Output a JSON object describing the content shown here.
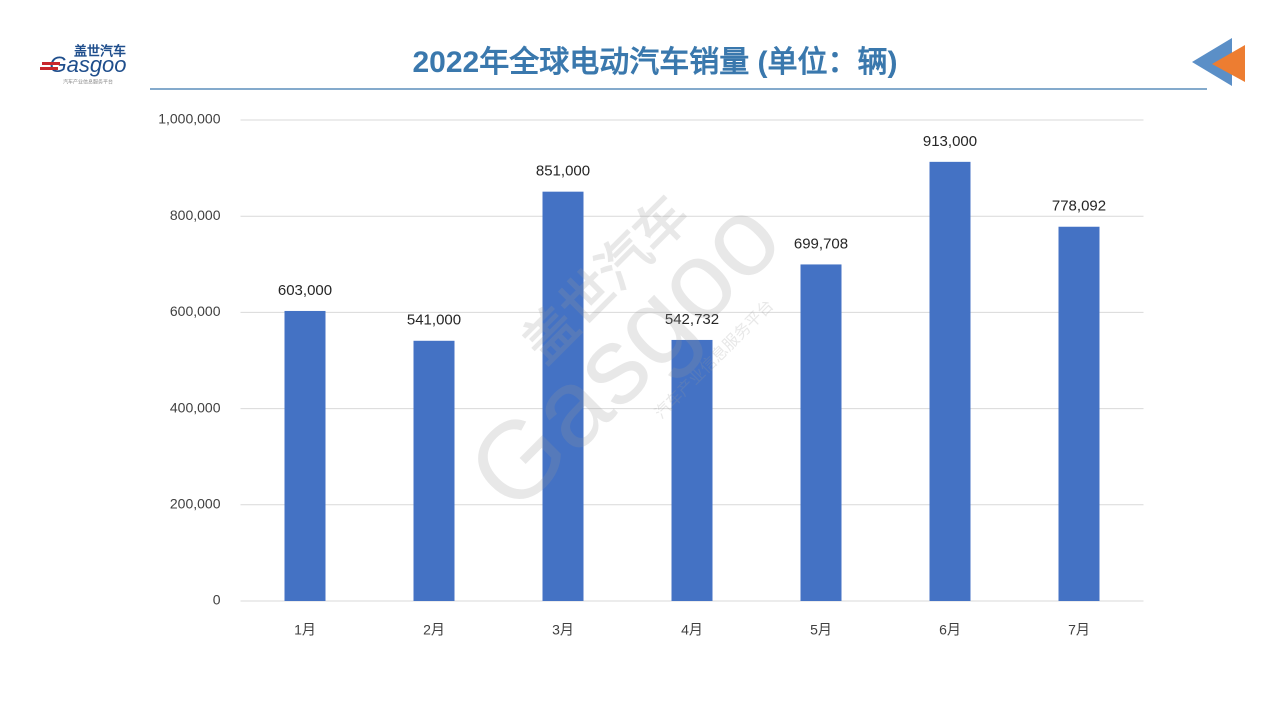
{
  "logo": {
    "name": "盖世汽车",
    "brand": "Gasgoo",
    "tagline": "汽车产业信息服务平台"
  },
  "chart_data": {
    "type": "bar",
    "title": "2022年全球电动汽车销量 (单位：辆)",
    "categories": [
      "1月",
      "2月",
      "3月",
      "4月",
      "5月",
      "6月",
      "7月"
    ],
    "values": [
      603000,
      541000,
      851000,
      542732,
      699708,
      913000,
      778092
    ],
    "value_labels": [
      "603,000",
      "541,000",
      "851,000",
      "542,732",
      "699,708",
      "913,000",
      "778,092"
    ],
    "color": "#4472c4",
    "ylim": [
      0,
      1000000
    ],
    "yticks": [
      0,
      {
        "value": 200000,
        "label": "200,000"
      },
      {
        "value": 400000,
        "label": "400,000"
      },
      {
        "value": 600000,
        "label": "600,000"
      },
      {
        "value": 800000,
        "label": "800,000"
      },
      {
        "value": 1000000,
        "label": "1,000,000"
      }
    ],
    "grid": true
  }
}
